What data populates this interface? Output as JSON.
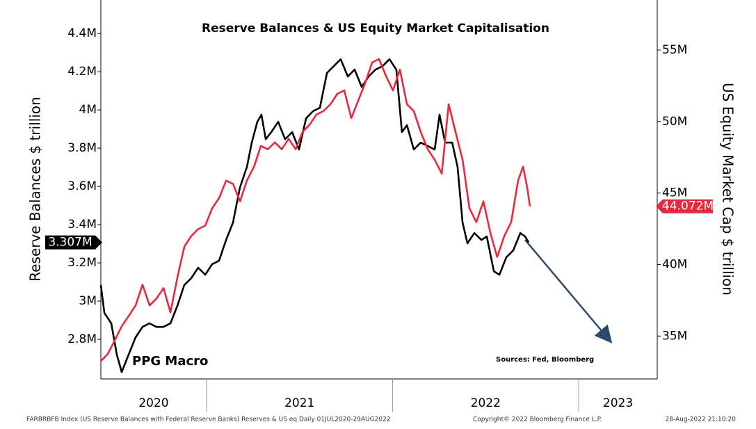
{
  "chart_data": {
    "type": "line",
    "title": "Reserve Balances & US Equity Market Capitalisation",
    "ylabel": "Reserve Balances $ trillion",
    "y2label": "US Equity Market Cap $ trillion",
    "annotations": [
      "PPG Macro",
      "Sources: Fed, Bloomberg"
    ],
    "footer_left": "FARBRBFB Index (US Reserve Balances with Federal Reserve Banks) Reserves & US eq  Daily 01JUL2020-29AUG2022",
    "footer_center": "Copyright© 2022 Bloomberg Finance L.P.",
    "footer_right": "28-Aug-2022 21:10:20",
    "xlim": [
      2020.432,
      2023.422
    ],
    "xticks": [
      2021,
      2022,
      2023
    ],
    "year_labels": [
      2020,
      2021,
      2022,
      2023
    ],
    "ylim": [
      2.593,
      4.575
    ],
    "yticks": [
      {
        "value": 2.8,
        "label": "2.8M"
      },
      {
        "value": 3,
        "label": "3M"
      },
      {
        "value": 3.2,
        "label": "3.2M"
      },
      {
        "value": 3.4,
        "label": "3.4M"
      },
      {
        "value": 3.6,
        "label": "3.6M"
      },
      {
        "value": 3.8,
        "label": "3.8M"
      },
      {
        "value": 4,
        "label": "4M"
      },
      {
        "value": 4.2,
        "label": "4.2M"
      },
      {
        "value": 4.4,
        "label": "4.4M"
      }
    ],
    "y2lim": [
      32.0,
      58.5
    ],
    "y2ticks": [
      {
        "value": 35,
        "label": "35M"
      },
      {
        "value": 40,
        "label": "40M"
      },
      {
        "value": 45,
        "label": "45M"
      },
      {
        "value": 50,
        "label": "50M"
      },
      {
        "value": 55,
        "label": "55M"
      }
    ],
    "series": [
      {
        "name": "US Reserve Balances",
        "color": "#000000",
        "axis": "y",
        "last_value_label": "3.307M",
        "x": [
          2020.432,
          2020.451,
          2020.488,
          2020.518,
          2020.544,
          2020.581,
          2020.619,
          2020.656,
          2020.693,
          2020.731,
          2020.768,
          2020.806,
          2020.843,
          2020.88,
          2020.918,
          2020.955,
          2020.993,
          2021.03,
          2021.067,
          2021.105,
          2021.142,
          2021.179,
          2021.217,
          2021.243,
          2021.273,
          2021.295,
          2021.318,
          2021.348,
          2021.385,
          2021.422,
          2021.46,
          2021.497,
          2021.535,
          2021.572,
          2021.609,
          2021.647,
          2021.684,
          2021.721,
          2021.759,
          2021.796,
          2021.834,
          2021.871,
          2021.908,
          2021.946,
          2021.983,
          2022.02,
          2022.05,
          2022.077,
          2022.114,
          2022.151,
          2022.189,
          2022.226,
          2022.252,
          2022.282,
          2022.32,
          2022.349,
          2022.376,
          2022.402,
          2022.439,
          2022.477,
          2022.506,
          2022.544,
          2022.574,
          2022.611,
          2022.648,
          2022.686,
          2022.712,
          2022.731
        ],
        "values": [
          3.084,
          2.938,
          2.884,
          2.72,
          2.629,
          2.72,
          2.811,
          2.865,
          2.884,
          2.865,
          2.865,
          2.884,
          2.975,
          3.084,
          3.12,
          3.175,
          3.138,
          3.193,
          3.211,
          3.32,
          3.411,
          3.593,
          3.702,
          3.829,
          3.938,
          3.975,
          3.847,
          3.884,
          3.938,
          3.847,
          3.884,
          3.793,
          3.956,
          3.993,
          4.011,
          4.193,
          4.229,
          4.265,
          4.175,
          4.211,
          4.12,
          4.175,
          4.211,
          4.229,
          4.265,
          4.211,
          3.884,
          3.92,
          3.793,
          3.829,
          3.811,
          3.793,
          3.975,
          3.829,
          3.829,
          3.702,
          3.411,
          3.302,
          3.356,
          3.32,
          3.338,
          3.156,
          3.138,
          3.229,
          3.265,
          3.356,
          3.338,
          3.307
        ]
      },
      {
        "name": "US Equity Market Cap",
        "color": "#e8283c",
        "axis": "y2",
        "last_value_label": "44.072M",
        "x": [
          2020.432,
          2020.469,
          2020.507,
          2020.544,
          2020.582,
          2020.619,
          2020.656,
          2020.694,
          2020.731,
          2020.769,
          2020.806,
          2020.843,
          2020.881,
          2020.918,
          2020.955,
          2020.993,
          2021.03,
          2021.068,
          2021.105,
          2021.143,
          2021.18,
          2021.217,
          2021.255,
          2021.292,
          2021.329,
          2021.367,
          2021.404,
          2021.441,
          2021.479,
          2021.516,
          2021.553,
          2021.591,
          2021.628,
          2021.666,
          2021.703,
          2021.74,
          2021.778,
          2021.815,
          2021.852,
          2021.89,
          2021.927,
          2021.965,
          2022.002,
          2022.039,
          2022.077,
          2022.114,
          2022.151,
          2022.189,
          2022.226,
          2022.264,
          2022.301,
          2022.338,
          2022.376,
          2022.413,
          2022.45,
          2022.488,
          2022.525,
          2022.562,
          2022.6,
          2022.637,
          2022.674,
          2022.701,
          2022.723,
          2022.738
        ],
        "values": [
          33.25,
          33.74,
          34.71,
          35.68,
          36.41,
          37.14,
          38.59,
          37.14,
          37.62,
          38.35,
          36.65,
          39.08,
          41.26,
          41.99,
          42.48,
          42.72,
          43.93,
          44.66,
          45.87,
          45.63,
          44.42,
          45.87,
          46.84,
          48.3,
          48.06,
          48.54,
          48.06,
          48.79,
          48.06,
          49.27,
          49.76,
          50.49,
          50.73,
          51.21,
          51.94,
          52.18,
          50.24,
          51.46,
          52.67,
          54.13,
          54.37,
          53.16,
          52.18,
          53.64,
          51.21,
          50.73,
          49.27,
          48.06,
          47.33,
          46.36,
          51.21,
          49.27,
          47.33,
          43.93,
          42.96,
          44.42,
          42.23,
          40.53,
          41.99,
          42.96,
          45.87,
          46.84,
          45.39,
          44.072
        ]
      }
    ]
  }
}
